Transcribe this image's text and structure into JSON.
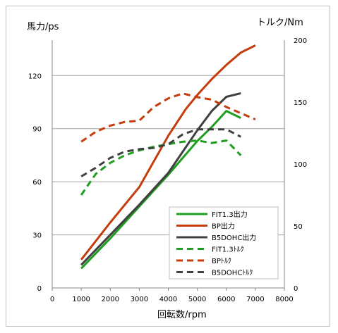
{
  "chart_data": {
    "type": "line",
    "title": "",
    "xlabel": "回転数/rpm",
    "ylabel_left": "馬力/ps",
    "ylabel_right": "トルク/Nm",
    "xlim": [
      0,
      8000
    ],
    "ylim_left": [
      0,
      140
    ],
    "ylim_right": [
      0,
      200
    ],
    "x_ticks": [
      0,
      1000,
      2000,
      3000,
      4000,
      5000,
      6000,
      7000,
      8000
    ],
    "y_ticks_left": [
      0,
      30,
      60,
      90,
      120
    ],
    "y_ticks_right": [
      0,
      50,
      100,
      150,
      200
    ],
    "grid": "horizontal",
    "legend_position": "bottom-right",
    "series": [
      {
        "name": "FIT1.3出力",
        "axis": "left",
        "color": "#1e9e1e",
        "dash": "solid",
        "x": [
          1000,
          2000,
          3000,
          4000,
          5000,
          5500,
          6000,
          6500
        ],
        "y": [
          11,
          28,
          46,
          64,
          83,
          91,
          100,
          96
        ]
      },
      {
        "name": "BP出力",
        "axis": "left",
        "color": "#c43c0c",
        "dash": "solid",
        "x": [
          1000,
          2000,
          3000,
          4000,
          4600,
          5000,
          5500,
          6000,
          6500,
          7000
        ],
        "y": [
          16,
          37,
          57,
          86,
          101,
          109,
          118,
          126,
          133,
          137
        ]
      },
      {
        "name": "B5DOHC出力",
        "axis": "left",
        "color": "#404040",
        "dash": "solid",
        "x": [
          1000,
          2000,
          3000,
          4000,
          5000,
          5500,
          6000,
          6500
        ],
        "y": [
          13,
          30,
          47,
          65,
          89,
          100,
          108,
          110
        ]
      },
      {
        "name": "FIT1.3ﾄﾙｸ",
        "axis": "right",
        "color": "#1e9e1e",
        "dash": "dashed",
        "x": [
          1000,
          1500,
          2000,
          2500,
          3000,
          3500,
          4000,
          4500,
          5000,
          5500,
          6000,
          6500
        ],
        "y": [
          75,
          92,
          101,
          107,
          111,
          114,
          116,
          118,
          119,
          117,
          119,
          107
        ]
      },
      {
        "name": "BPﾄﾙｸ",
        "axis": "right",
        "color": "#c43c0c",
        "dash": "dashed",
        "x": [
          1000,
          1500,
          2000,
          2500,
          3000,
          3500,
          4000,
          4500,
          5000,
          5500,
          6000,
          6500,
          7000
        ],
        "y": [
          118,
          126,
          131,
          134,
          135,
          146,
          153,
          157,
          154,
          152,
          146,
          141,
          136
        ]
      },
      {
        "name": "B5DOHCﾄﾙｸ",
        "axis": "right",
        "color": "#404040",
        "dash": "dashed",
        "x": [
          1000,
          1500,
          2000,
          2500,
          3000,
          3500,
          4000,
          4500,
          5000,
          5500,
          6000,
          6500
        ],
        "y": [
          90,
          97,
          105,
          110,
          112,
          113,
          116,
          124,
          128,
          128,
          128,
          122
        ]
      }
    ]
  }
}
